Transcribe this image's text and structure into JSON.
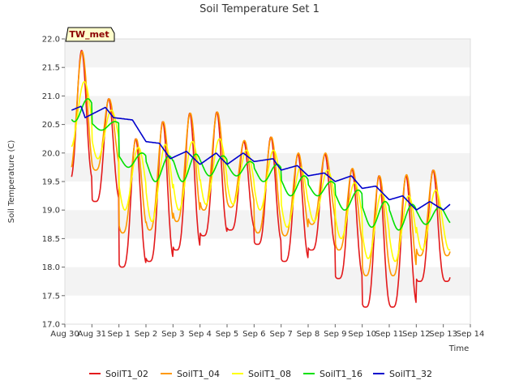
{
  "chart_data": {
    "type": "line",
    "title": "Soil Temperature Set 1",
    "xlabel": "Time",
    "ylabel": "Soil Temperature (C)",
    "ylim": [
      17.0,
      22.0
    ],
    "yticks": [
      "17.0",
      "17.5",
      "18.0",
      "18.5",
      "19.0",
      "19.5",
      "20.0",
      "20.5",
      "21.0",
      "21.5",
      "22.0"
    ],
    "xlim_days": [
      0,
      15
    ],
    "xtick_labels": [
      "Aug 30",
      "Aug 31",
      "Sep 1",
      "Sep 2",
      "Sep 3",
      "Sep 4",
      "Sep 5",
      "Sep 6",
      "Sep 7",
      "Sep 8",
      "Sep 9",
      "Sep 10",
      "Sep 11",
      "Sep 12",
      "Sep 13",
      "Sep 14"
    ],
    "grid": "horizontal bands",
    "legend_position": "bottom",
    "badge": "TW_met",
    "data_start": 0.25,
    "data_end": 14.25,
    "series": [
      {
        "name": "SoilT1_02",
        "color": "#e31a1c",
        "max": [
          21.8,
          20.95,
          20.25,
          20.55,
          20.7,
          20.72,
          20.2,
          20.28,
          19.98,
          19.98,
          19.72,
          19.6,
          19.6,
          19.7
        ],
        "min": [
          19.5,
          19.15,
          18.0,
          18.1,
          18.3,
          18.55,
          18.65,
          18.4,
          18.1,
          18.3,
          17.8,
          17.3,
          17.3,
          17.75
        ],
        "phase": 0.62,
        "sharp": 1.8
      },
      {
        "name": "SoilT1_04",
        "color": "#ff9900",
        "max": [
          21.78,
          20.95,
          20.25,
          20.55,
          20.7,
          20.72,
          20.22,
          20.28,
          20.0,
          20.0,
          19.73,
          19.6,
          19.62,
          19.7
        ],
        "min": [
          19.65,
          19.7,
          18.6,
          18.65,
          18.8,
          19.0,
          19.05,
          18.6,
          18.55,
          18.75,
          18.3,
          17.85,
          17.85,
          18.2
        ],
        "phase": 0.64,
        "sharp": 1.4
      },
      {
        "name": "SoilT1_08",
        "color": "#ffff00",
        "max": [
          21.25,
          20.75,
          20.1,
          20.15,
          20.2,
          20.25,
          20.05,
          20.05,
          19.75,
          19.7,
          19.48,
          19.3,
          19.25,
          19.35
        ],
        "min": [
          20.1,
          19.9,
          19.0,
          18.8,
          19.0,
          19.1,
          19.1,
          19.0,
          18.7,
          18.8,
          18.5,
          18.15,
          18.1,
          18.3
        ],
        "phase": 0.72,
        "sharp": 1.0
      },
      {
        "name": "SoilT1_16",
        "color": "#00e000",
        "max": [
          20.95,
          20.55,
          20.0,
          19.95,
          19.98,
          19.95,
          19.85,
          19.8,
          19.6,
          19.5,
          19.35,
          19.15,
          19.1,
          19.05
        ],
        "min": [
          20.55,
          20.4,
          19.75,
          19.5,
          19.5,
          19.6,
          19.6,
          19.5,
          19.25,
          19.25,
          19.0,
          18.7,
          18.65,
          18.75
        ],
        "phase": 0.85,
        "sharp": 1.0
      },
      {
        "name": "SoilT1_32",
        "color": "#0000cc",
        "points": [
          [
            0.25,
            20.75
          ],
          [
            0.6,
            20.82
          ],
          [
            0.75,
            20.62
          ],
          [
            1.0,
            20.68
          ],
          [
            1.5,
            20.8
          ],
          [
            1.8,
            20.62
          ],
          [
            2.5,
            20.58
          ],
          [
            3.0,
            20.2
          ],
          [
            3.5,
            20.17
          ],
          [
            3.9,
            19.9
          ],
          [
            4.5,
            20.03
          ],
          [
            5.0,
            19.8
          ],
          [
            5.6,
            20.0
          ],
          [
            6.0,
            19.8
          ],
          [
            6.6,
            20.0
          ],
          [
            7.0,
            19.85
          ],
          [
            7.7,
            19.9
          ],
          [
            8.0,
            19.7
          ],
          [
            8.6,
            19.78
          ],
          [
            9.0,
            19.6
          ],
          [
            9.6,
            19.65
          ],
          [
            10.0,
            19.5
          ],
          [
            10.6,
            19.6
          ],
          [
            11.0,
            19.38
          ],
          [
            11.5,
            19.42
          ],
          [
            12.0,
            19.18
          ],
          [
            12.5,
            19.25
          ],
          [
            13.0,
            19.0
          ],
          [
            13.5,
            19.15
          ],
          [
            14.0,
            19.0
          ],
          [
            14.25,
            19.1
          ]
        ]
      }
    ]
  }
}
